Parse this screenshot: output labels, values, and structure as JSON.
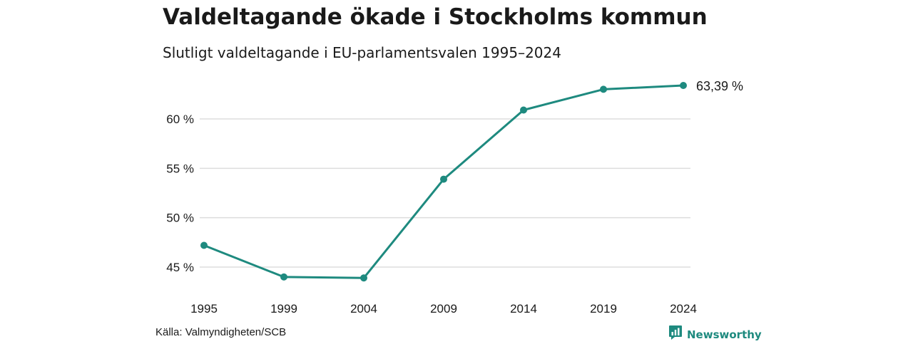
{
  "header": {
    "title": "Valdeltagande ökade i Stockholms kommun",
    "subtitle": "Slutligt valdeltagande i EU-parlamentsvalen 1995–2024"
  },
  "footer": {
    "source": "Källa: Valmyndigheten/SCB",
    "brand": "Newsworthy"
  },
  "colors": {
    "line": "#1e8a7f",
    "grid": "#dddddd",
    "brand": "#1e8a7f"
  },
  "icons": {
    "brand": "newsworthy-logo-icon"
  },
  "chart_data": {
    "type": "line",
    "title": "Valdeltagande ökade i Stockholms kommun",
    "subtitle": "Slutligt valdeltagande i EU-parlamentsvalen 1995–2024",
    "x": [
      1995,
      1999,
      2004,
      2009,
      2014,
      2019,
      2024
    ],
    "y_tick_values": [
      45,
      50,
      55,
      60
    ],
    "y_tick_labels": [
      "45 %",
      "50 %",
      "55 %",
      "60 %"
    ],
    "ylim": [
      43,
      65
    ],
    "grid": "horizontal",
    "series": [
      {
        "values": [
          47.2,
          44.0,
          43.9,
          53.9,
          60.9,
          63.0,
          63.39
        ]
      }
    ],
    "end_label": "63,39 %"
  }
}
